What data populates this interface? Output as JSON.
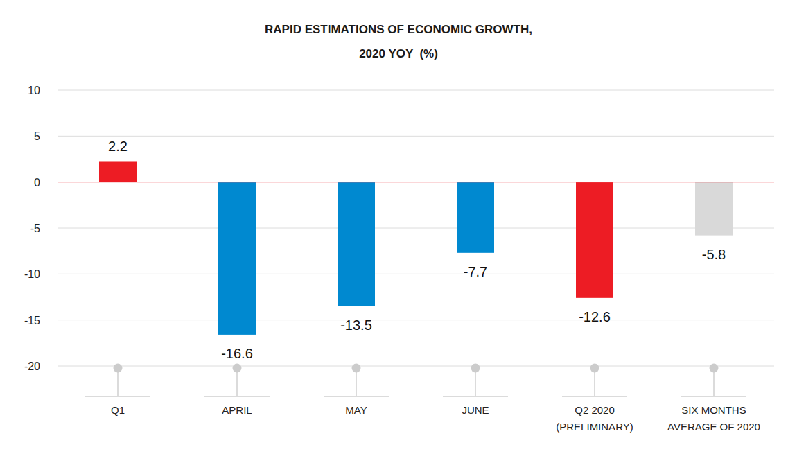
{
  "chart_data": {
    "type": "bar",
    "title": "RAPID ESTIMATIONS OF ECONOMIC GROWTH,",
    "subtitle": "2020 YOY  (%)",
    "categories": [
      "Q1",
      "APRIL",
      "MAY",
      "JUNE",
      "Q2 2020\n(PRELIMINARY)",
      "SIX MONTHS\nAVERAGE OF 2020"
    ],
    "values": [
      2.2,
      -16.6,
      -13.5,
      -7.7,
      -12.6,
      -5.8
    ],
    "colors": [
      "#ed1c24",
      "#0089d0",
      "#0089d0",
      "#0089d0",
      "#ed1c24",
      "#d9d9d9"
    ],
    "ylim": [
      -20,
      10
    ],
    "yticks": [
      -20,
      -15,
      -10,
      -5,
      0,
      5,
      10
    ],
    "grid": true,
    "data_labels": true
  }
}
